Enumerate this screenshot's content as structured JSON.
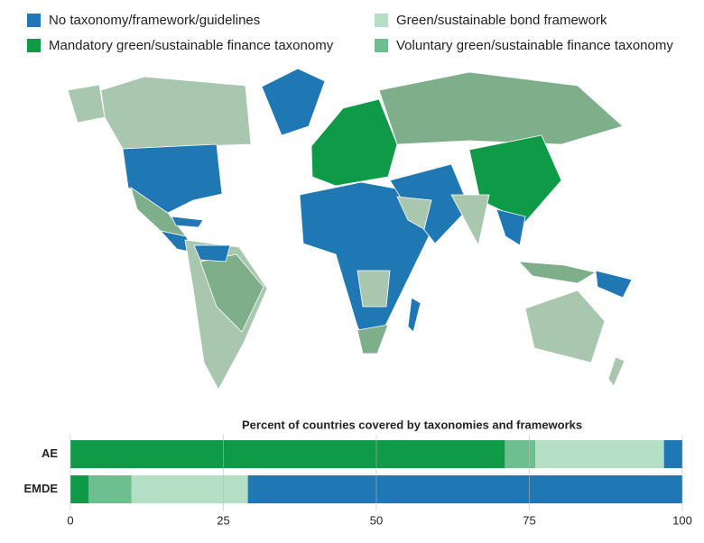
{
  "chart_data": {
    "type": "bar",
    "orientation": "horizontal",
    "stacked": true,
    "title": "Percent of countries covered by taxonomies and frameworks",
    "categories": [
      "AE",
      "EMDE"
    ],
    "series": [
      {
        "name": "Mandatory green/sustainable finance taxonomy",
        "color": "#0f9a48",
        "values": [
          71,
          3
        ]
      },
      {
        "name": "Voluntary green/sustainable finance taxonomy",
        "color": "#6fbe8f",
        "values": [
          5,
          7
        ]
      },
      {
        "name": "Green/sustainable bond framework",
        "color": "#b5dfc5",
        "values": [
          21,
          19
        ]
      },
      {
        "name": "No taxonomy/framework/guidelines",
        "color": "#1f78b4",
        "values": [
          3,
          71
        ]
      }
    ],
    "xlim": [
      0,
      100
    ],
    "xticks": [
      0,
      25,
      50,
      75,
      100
    ],
    "grid": true
  }
}
